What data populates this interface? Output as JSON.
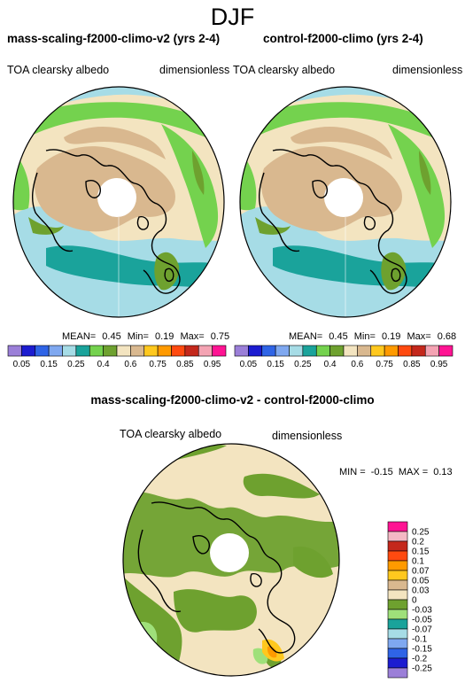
{
  "season": "DJF",
  "panels": [
    {
      "title": "mass-scaling-f2000-climo-v2 (yrs 2-4)",
      "variable": "TOA clearsky albedo",
      "units": "dimensionless",
      "stats": {
        "mean": "0.45",
        "min": "0.19",
        "max": "0.75"
      },
      "stats_labels": {
        "mean": "MEAN=",
        "min": "Min=",
        "max": "Max="
      }
    },
    {
      "title": "control-f2000-climo (yrs 2-4)",
      "variable": "TOA clearsky albedo",
      "units": "dimensionless",
      "stats": {
        "mean": "0.45",
        "min": "0.19",
        "max": "0.68"
      },
      "stats_labels": {
        "mean": "MEAN=",
        "min": "Min=",
        "max": "Max="
      }
    }
  ],
  "diff": {
    "title": "mass-scaling-f2000-climo-v2 - control-f2000-climo",
    "variable": "TOA clearsky albedo",
    "units": "dimensionless",
    "min_label": "MIN =",
    "min": "-0.15",
    "max_label": "MAX =",
    "max": "0.13"
  },
  "colorbar_top": {
    "labels": [
      "0.05",
      "0.15",
      "0.25",
      "0.4",
      "0.6",
      "0.75",
      "0.85",
      "0.95"
    ],
    "colors": [
      "#9b7fd8",
      "#1c1cd0",
      "#2f64e6",
      "#7fa8f0",
      "#a6dce6",
      "#1aa39b",
      "#74d24e",
      "#6ea12f",
      "#f3e4c0",
      "#d9b88f",
      "#ffc81e",
      "#ff9a00",
      "#ff4a10",
      "#c4281c",
      "#f4a3b3",
      "#ff1493"
    ]
  },
  "colorbar_diff": {
    "labels": [
      "0.25",
      "0.2",
      "0.15",
      "0.1",
      "0.07",
      "0.05",
      "0.03",
      "0",
      "-0.03",
      "-0.05",
      "-0.07",
      "-0.1",
      "-0.15",
      "-0.2",
      "-0.25"
    ],
    "colors": [
      "#ff1493",
      "#f4b8c4",
      "#c4281c",
      "#ff4a10",
      "#ff9a00",
      "#ffc81e",
      "#d9b88f",
      "#f3e4c0",
      "#6ea12f",
      "#9fe07a",
      "#1aa39b",
      "#a6dce6",
      "#7fa8f0",
      "#2f64e6",
      "#1c1cd0",
      "#9b7fd8"
    ]
  },
  "map_colors": {
    "ocean_pale": "#a6dce6",
    "teal": "#1aa39b",
    "green": "#74d24e",
    "olive": "#6ea12f",
    "tan": "#d9b88f",
    "cream": "#f3e4c0",
    "periwinkle": "#7fa8f0",
    "orange": "#ff9a00",
    "yellow": "#ffc81e"
  }
}
